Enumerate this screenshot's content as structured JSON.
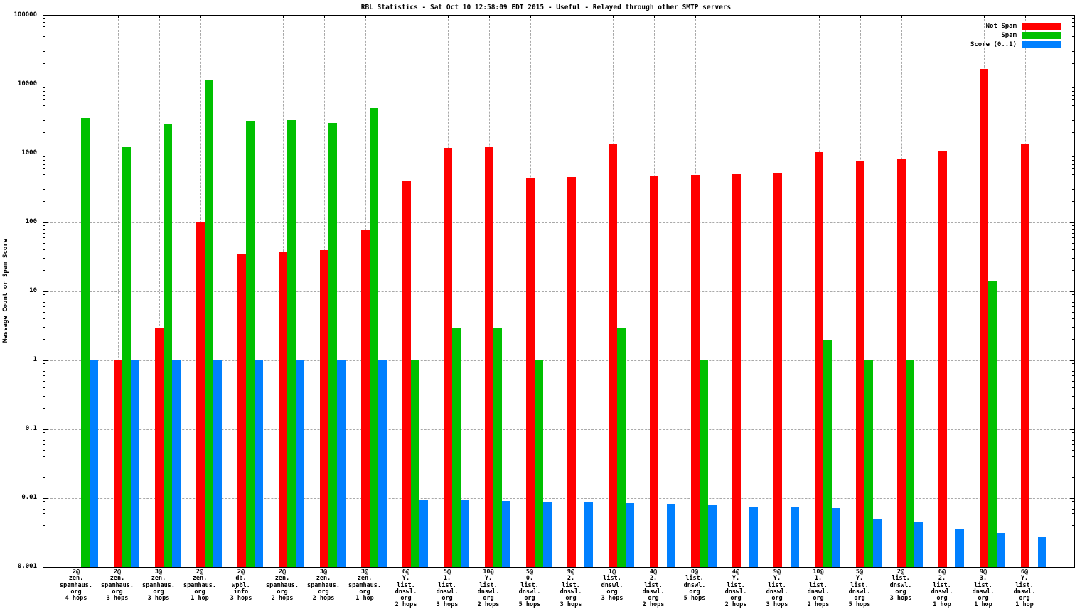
{
  "title": "RBL Statistics - Sat Oct 10 12:58:09 EDT 2015 - Useful - Relayed through other SMTP servers",
  "ylabel": "Message Count or Spam Score",
  "legend": [
    {
      "label": "Not Spam",
      "color": "#ff0000"
    },
    {
      "label": "Spam",
      "color": "#00c000"
    },
    {
      "label": "Score (0..1)",
      "color": "#0080ff"
    }
  ],
  "chart_data": {
    "type": "bar",
    "y_scale": "log",
    "ylim": [
      0.001,
      100000
    ],
    "grid": true,
    "legend_position": "top-right",
    "y_ticks": [
      "100000",
      "10000",
      "1000",
      "100",
      "10",
      "1",
      "0.1",
      "0.01",
      "0.001"
    ],
    "y_tick_values": [
      100000,
      10000,
      1000,
      100,
      10,
      1,
      0.1,
      0.01,
      0.001
    ],
    "categories": [
      "2@\nzen.\nspamhaus.\norg\n4 hops",
      "2@\nzen.\nspamhaus.\norg\n3 hops",
      "3@\nzen.\nspamhaus.\norg\n3 hops",
      "2@\nzen.\nspamhaus.\norg\n1 hop",
      "2@\ndb.\nwpbl.\ninfo\n3 hops",
      "2@\nzen.\nspamhaus.\norg\n2 hops",
      "3@\nzen.\nspamhaus.\norg\n2 hops",
      "3@\nzen.\nspamhaus.\norg\n1 hop",
      "6@\nY.\nlist.\ndnswl.\norg\n2 hops",
      "5@\n1.\nlist.\ndnswl.\norg\n3 hops",
      "10@\nY.\nlist.\ndnswl.\norg\n2 hops",
      "5@\n0.\nlist.\ndnswl.\norg\n5 hops",
      "9@\n2.\nlist.\ndnswl.\norg\n3 hops",
      "1@\nlist.\ndnswl.\norg\n3 hops",
      "4@\n2.\nlist.\ndnswl.\norg\n2 hops",
      "0@\nlist.\ndnswl.\norg\n5 hops",
      "4@\nY.\nlist.\ndnswl.\norg\n2 hops",
      "9@\nY.\nlist.\ndnswl.\norg\n3 hops",
      "10@\n1.\nlist.\ndnswl.\norg\n2 hops",
      "5@\nY.\nlist.\ndnswl.\norg\n5 hops",
      "2@\nlist.\ndnswl.\norg\n3 hops",
      "6@\n2.\nlist.\ndnswl.\norg\n1 hop",
      "9@\n3.\nlist.\ndnswl.\norg\n1 hop",
      "6@\nY.\nlist.\ndnswl.\norg\n1 hop"
    ],
    "series": [
      {
        "name": "Not Spam",
        "color": "#ff0000",
        "values": [
          null,
          1,
          3,
          100,
          35,
          38,
          40,
          78,
          400,
          1200,
          1250,
          450,
          460,
          1350,
          465,
          490,
          500,
          510,
          1050,
          780,
          830,
          1080,
          17000,
          1400
        ]
      },
      {
        "name": "Spam",
        "color": "#00c000",
        "values": [
          3300,
          1250,
          2700,
          11500,
          3000,
          3050,
          2800,
          4600,
          1,
          3,
          3,
          1,
          null,
          3,
          null,
          1,
          null,
          null,
          2,
          1,
          1,
          null,
          14,
          null
        ]
      },
      {
        "name": "Score (0..1)",
        "color": "#0080ff",
        "values": [
          1,
          1,
          1,
          1,
          1,
          1,
          1,
          1,
          0.0095,
          0.0095,
          0.0092,
          0.0087,
          0.0087,
          0.0085,
          0.0083,
          0.0078,
          0.0076,
          0.0074,
          0.0071,
          0.0049,
          0.0046,
          0.0035,
          0.0031,
          0.0028
        ]
      }
    ]
  }
}
